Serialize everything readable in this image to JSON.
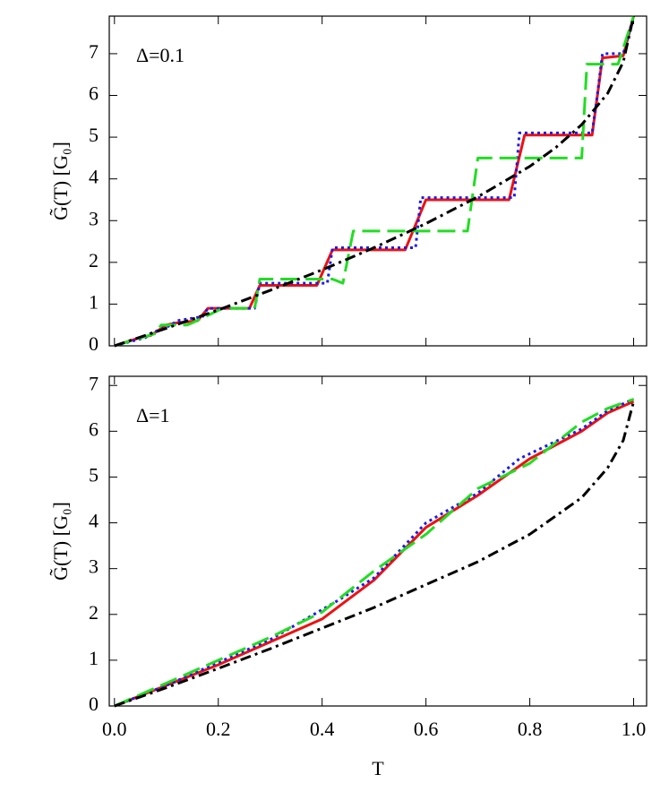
{
  "chart_data": [
    {
      "type": "line",
      "annotation": "Δ=0.1",
      "ylabel": "G̃(T) [G₀]",
      "xlim": [
        -0.01,
        1.025
      ],
      "xticks": [
        0,
        0.2,
        0.4,
        0.6,
        0.8,
        1
      ],
      "xtick_labels": false,
      "ylim": [
        0,
        7.9
      ],
      "yticks": [
        0,
        1,
        2,
        3,
        4,
        5,
        6,
        7
      ],
      "series": [
        {
          "color": "#ee1111",
          "style": "solid",
          "x": [
            0,
            0.05,
            0.07,
            0.1,
            0.12,
            0.16,
            0.18,
            0.26,
            0.28,
            0.39,
            0.42,
            0.56,
            0.6,
            0.76,
            0.79,
            0.92,
            0.94,
            0.98,
            1.0
          ],
          "values": [
            0,
            0.2,
            0.25,
            0.5,
            0.55,
            0.6,
            0.9,
            0.9,
            1.45,
            1.45,
            2.3,
            2.3,
            3.5,
            3.5,
            5.05,
            5.05,
            6.9,
            6.95,
            7.9
          ]
        },
        {
          "color": "#1a1aee",
          "style": "dotted",
          "x": [
            0,
            0.06,
            0.07,
            0.11,
            0.12,
            0.17,
            0.18,
            0.27,
            0.28,
            0.41,
            0.42,
            0.58,
            0.59,
            0.77,
            0.78,
            0.92,
            0.93,
            0.94,
            0.98,
            1.0
          ],
          "values": [
            0,
            0.2,
            0.3,
            0.5,
            0.6,
            0.7,
            0.9,
            0.9,
            1.5,
            1.5,
            2.35,
            2.35,
            3.55,
            3.55,
            5.1,
            5.1,
            6.0,
            7.0,
            7.0,
            7.9
          ]
        },
        {
          "color": "#22dd22",
          "style": "dashed",
          "x": [
            0,
            0.08,
            0.09,
            0.14,
            0.15,
            0.2,
            0.21,
            0.27,
            0.28,
            0.42,
            0.44,
            0.46,
            0.68,
            0.7,
            0.9,
            0.91,
            0.97,
            1.0
          ],
          "values": [
            0,
            0.3,
            0.5,
            0.5,
            0.55,
            0.85,
            0.9,
            0.9,
            1.6,
            1.6,
            1.5,
            2.75,
            2.75,
            4.5,
            4.5,
            6.75,
            6.75,
            7.9
          ]
        },
        {
          "color": "#000000",
          "style": "dashdot",
          "x": [
            0,
            0.1,
            0.2,
            0.3,
            0.4,
            0.5,
            0.6,
            0.7,
            0.8,
            0.85,
            0.9,
            0.95,
            0.98,
            1.0
          ],
          "values": [
            0,
            0.42,
            0.86,
            1.33,
            1.82,
            2.35,
            2.93,
            3.57,
            4.3,
            4.75,
            5.3,
            6.05,
            6.8,
            7.9
          ]
        }
      ]
    },
    {
      "type": "line",
      "annotation": "Δ=1",
      "ylabel": "G̃(T) [G₀]",
      "xlabel": "T",
      "xlim": [
        -0.01,
        1.025
      ],
      "xticks": [
        {
          "value": 0,
          "label": "0.0"
        },
        0.2,
        0.4,
        0.6,
        0.8,
        {
          "value": 1,
          "label": "1.0"
        }
      ],
      "xtick_labels": true,
      "ylim": [
        0,
        7.2
      ],
      "yticks": [
        0,
        1,
        2,
        3,
        4,
        5,
        6,
        7
      ],
      "series": [
        {
          "color": "#ee1111",
          "style": "solid",
          "x": [
            0,
            0.1,
            0.2,
            0.3,
            0.4,
            0.5,
            0.6,
            0.7,
            0.8,
            0.9,
            0.95,
            1.0
          ],
          "values": [
            0,
            0.45,
            0.9,
            1.4,
            1.9,
            2.75,
            3.9,
            4.6,
            5.4,
            6.0,
            6.4,
            6.65
          ]
        },
        {
          "color": "#1a1aee",
          "style": "dotted",
          "x": [
            0,
            0.1,
            0.2,
            0.3,
            0.43,
            0.5,
            0.6,
            0.7,
            0.78,
            0.9,
            0.95,
            1.0
          ],
          "values": [
            0,
            0.45,
            0.95,
            1.45,
            2.3,
            2.8,
            4.0,
            4.65,
            5.4,
            6.05,
            6.45,
            6.7
          ]
        },
        {
          "color": "#22dd22",
          "style": "dashed",
          "x": [
            0,
            0.1,
            0.2,
            0.3,
            0.4,
            0.5,
            0.6,
            0.7,
            0.8,
            0.9,
            0.95,
            1.0
          ],
          "values": [
            0,
            0.5,
            1.0,
            1.5,
            2.05,
            2.95,
            3.75,
            4.75,
            5.3,
            6.2,
            6.5,
            6.7
          ]
        },
        {
          "color": "#000000",
          "style": "dashdot",
          "x": [
            0,
            0.1,
            0.2,
            0.3,
            0.4,
            0.5,
            0.6,
            0.7,
            0.8,
            0.9,
            0.95,
            0.98,
            1.0
          ],
          "values": [
            0,
            0.4,
            0.82,
            1.25,
            1.7,
            2.15,
            2.65,
            3.15,
            3.75,
            4.55,
            5.2,
            5.8,
            6.65
          ]
        }
      ]
    }
  ]
}
